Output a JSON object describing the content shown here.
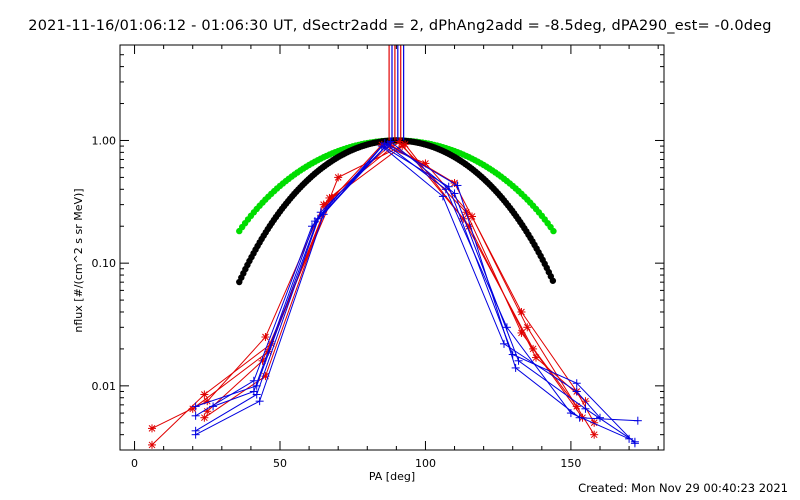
{
  "title": "2021-11-16/01:06:12 - 01:06:30 UT, dSectr2add = 2, dPhAng2add = -8.5deg, dPA290_est= -0.0deg",
  "footer": "Created: Mon Nov 29 00:40:23 2021",
  "colors": {
    "red": "#e00000",
    "blue": "#0000e0",
    "green": "#00dd00",
    "black": "#000000"
  },
  "chart_data": {
    "type": "line",
    "title": "2021-11-16/01:06:12 - 01:06:30 UT, dSectr2add = 2, dPhAng2add = -8.5deg, dPA290_est= -0.0deg",
    "xlabel": "PA [deg]",
    "ylabel": "nflux [#/(cm^2 s sr MeV)]",
    "xlim": [
      -5,
      182
    ],
    "ylim": [
      0.003,
      6
    ],
    "y_scale": "log",
    "x_ticks": [
      0,
      50,
      100,
      150
    ],
    "y_ticks": [
      {
        "value": 1.0,
        "label": "1.00"
      },
      {
        "value": 0.1,
        "label": "0.10"
      },
      {
        "value": 0.01,
        "label": "0.01"
      }
    ],
    "grid": false,
    "vertical_markers": [
      {
        "x": 87.5,
        "color": "#e00000"
      },
      {
        "x": 88.5,
        "color": "#0000e0"
      },
      {
        "x": 89.5,
        "color": "#e00000"
      },
      {
        "x": 90.5,
        "color": "#0000e0"
      },
      {
        "x": 91.5,
        "color": "#e00000"
      },
      {
        "x": 92.5,
        "color": "#0000e0"
      }
    ],
    "series": [
      {
        "color": "#e00000",
        "marker": "asterisk",
        "x": [
          6,
          25,
          45,
          65,
          88,
          110,
          133,
          152,
          158
        ],
        "y": [
          0.0045,
          0.0075,
          0.025,
          0.3,
          0.92,
          0.45,
          0.04,
          0.009,
          0.005
        ]
      },
      {
        "color": "#e00000",
        "marker": "asterisk",
        "x": [
          6,
          24,
          47,
          67,
          91,
          113,
          137,
          154
        ],
        "y": [
          0.0033,
          0.0085,
          0.022,
          0.34,
          0.98,
          0.23,
          0.02,
          0.0055
        ]
      },
      {
        "color": "#e00000",
        "marker": "asterisk",
        "x": [
          20,
          46,
          70,
          93,
          115,
          138,
          155
        ],
        "y": [
          0.0065,
          0.019,
          0.5,
          0.93,
          0.2,
          0.017,
          0.0075
        ]
      },
      {
        "color": "#e00000",
        "marker": "asterisk",
        "x": [
          25,
          44,
          68,
          92,
          114,
          133,
          152
        ],
        "y": [
          0.0062,
          0.016,
          0.34,
          0.9,
          0.26,
          0.027,
          0.0068
        ]
      },
      {
        "color": "#e00000",
        "marker": "asterisk",
        "x": [
          24,
          45,
          66,
          85,
          100,
          116,
          135,
          158
        ],
        "y": [
          0.0055,
          0.012,
          0.3,
          0.92,
          0.65,
          0.24,
          0.03,
          0.004
        ]
      },
      {
        "color": "#0000e0",
        "marker": "plus",
        "x": [
          21,
          42,
          63,
          86,
          108,
          130,
          152,
          172
        ],
        "y": [
          0.0068,
          0.01,
          0.23,
          0.88,
          0.42,
          0.018,
          0.0105,
          0.0034
        ]
      },
      {
        "color": "#0000e0",
        "marker": "plus",
        "x": [
          21,
          41,
          61,
          87,
          111,
          131,
          153,
          173
        ],
        "y": [
          0.0057,
          0.011,
          0.2,
          0.93,
          0.43,
          0.014,
          0.0055,
          0.0052
        ]
      },
      {
        "color": "#0000e0",
        "marker": "plus",
        "x": [
          21,
          42,
          64,
          88,
          110,
          132,
          155,
          172
        ],
        "y": [
          0.0043,
          0.0085,
          0.26,
          0.98,
          0.37,
          0.016,
          0.0065,
          0.0035
        ]
      },
      {
        "color": "#0000e0",
        "marker": "plus",
        "x": [
          21,
          43,
          65,
          86,
          107,
          128,
          150,
          170
        ],
        "y": [
          0.004,
          0.0075,
          0.25,
          0.95,
          0.4,
          0.03,
          0.006,
          0.0037
        ]
      },
      {
        "color": "#0000e0",
        "marker": "plus",
        "x": [
          27,
          41,
          62,
          85,
          106,
          127,
          152,
          160
        ],
        "y": [
          0.0068,
          0.009,
          0.22,
          0.9,
          0.35,
          0.022,
          0.009,
          0.0055
        ]
      },
      {
        "color": "#00dd00",
        "marker": "dot",
        "line": false,
        "step": 1,
        "x_range": [
          36,
          144
        ],
        "peak_x": 90,
        "model": "sin_power",
        "n": 3.2
      },
      {
        "color": "#000000",
        "marker": "dot",
        "line": false,
        "step": 0.7,
        "x_range": [
          36,
          144
        ],
        "peak_x": 90,
        "model": "sin_power",
        "n": 5.0
      }
    ]
  }
}
